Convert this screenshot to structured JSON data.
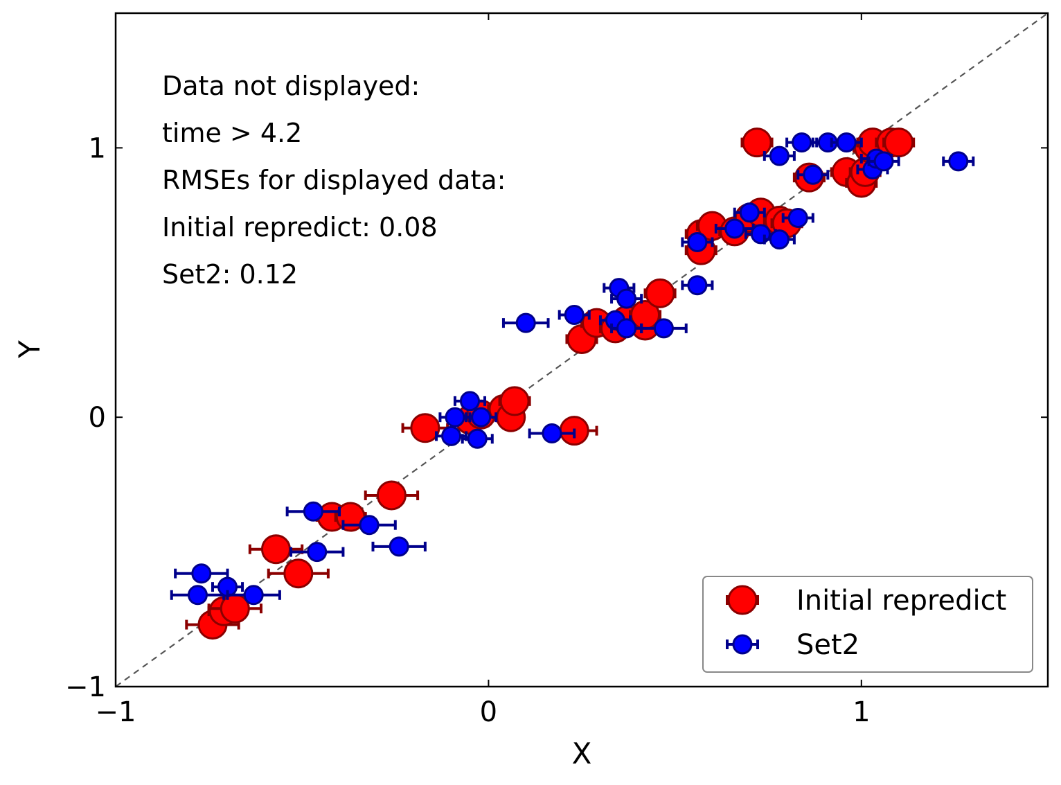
{
  "chart_data": {
    "type": "scatter",
    "xlabel": "X",
    "ylabel": "Y",
    "xlim": [
      -1.0,
      1.5
    ],
    "ylim": [
      -1.0,
      1.5
    ],
    "x_ticks": [
      -1,
      0,
      1
    ],
    "y_ticks": [
      -1,
      0,
      1
    ],
    "x_tick_labels": [
      "−1",
      "0",
      "1"
    ],
    "y_tick_labels": [
      "−1",
      "0",
      "1"
    ],
    "grid": false,
    "reference_line": {
      "style": "dashed",
      "color": "#555555",
      "from": [
        -1.0,
        -1.0
      ],
      "to": [
        1.5,
        1.5
      ]
    },
    "annotations": [
      "Data not displayed:",
      "time > 4.2",
      "RMSEs for displayed data:",
      "Initial repredict: 0.08",
      "Set2: 0.12"
    ],
    "legend": {
      "placement": "lower-right",
      "entries": [
        "Initial repredict",
        "Set2"
      ]
    },
    "series": [
      {
        "name": "Initial repredict",
        "color": "#ff0000",
        "edge_color": "#8b0000",
        "marker": "circle",
        "points": [
          {
            "x": -0.74,
            "y": -0.77,
            "xerr": 0.07
          },
          {
            "x": -0.71,
            "y": -0.72,
            "xerr": 0.04
          },
          {
            "x": -0.68,
            "y": -0.71,
            "xerr": 0.07
          },
          {
            "x": -0.57,
            "y": -0.49,
            "xerr": 0.07
          },
          {
            "x": -0.51,
            "y": -0.58,
            "xerr": 0.08
          },
          {
            "x": -0.42,
            "y": -0.37,
            "xerr": 0.04
          },
          {
            "x": -0.37,
            "y": -0.37,
            "xerr": 0.04
          },
          {
            "x": -0.26,
            "y": -0.29,
            "xerr": 0.07
          },
          {
            "x": -0.17,
            "y": -0.04,
            "xerr": 0.06
          },
          {
            "x": -0.05,
            "y": -0.01,
            "xerr": 0.03
          },
          {
            "x": -0.02,
            "y": 0.01,
            "xerr": 0.03
          },
          {
            "x": 0.04,
            "y": 0.03,
            "xerr": 0.04
          },
          {
            "x": 0.06,
            "y": 0.0,
            "xerr": 0.03
          },
          {
            "x": 0.07,
            "y": 0.06,
            "xerr": 0.04
          },
          {
            "x": 0.23,
            "y": -0.05,
            "xerr": 0.06
          },
          {
            "x": 0.25,
            "y": 0.29,
            "xerr": 0.04
          },
          {
            "x": 0.29,
            "y": 0.35,
            "xerr": 0.04
          },
          {
            "x": 0.34,
            "y": 0.33,
            "xerr": 0.04
          },
          {
            "x": 0.37,
            "y": 0.36,
            "xerr": 0.04
          },
          {
            "x": 0.42,
            "y": 0.34,
            "xerr": 0.04
          },
          {
            "x": 0.42,
            "y": 0.38,
            "xerr": 0.04
          },
          {
            "x": 0.46,
            "y": 0.46,
            "xerr": 0.04
          },
          {
            "x": 0.57,
            "y": 0.68,
            "xerr": 0.04
          },
          {
            "x": 0.57,
            "y": 0.62,
            "xerr": 0.04
          },
          {
            "x": 0.6,
            "y": 0.71,
            "xerr": 0.04
          },
          {
            "x": 0.66,
            "y": 0.69,
            "xerr": 0.04
          },
          {
            "x": 0.7,
            "y": 0.74,
            "xerr": 0.04
          },
          {
            "x": 0.72,
            "y": 1.02,
            "xerr": 0.04
          },
          {
            "x": 0.73,
            "y": 0.76,
            "xerr": 0.04
          },
          {
            "x": 0.78,
            "y": 0.73,
            "xerr": 0.04
          },
          {
            "x": 0.8,
            "y": 0.72,
            "xerr": 0.04
          },
          {
            "x": 0.86,
            "y": 0.89,
            "xerr": 0.04
          },
          {
            "x": 0.96,
            "y": 0.91,
            "xerr": 0.04
          },
          {
            "x": 1.0,
            "y": 0.87,
            "xerr": 0.04
          },
          {
            "x": 1.01,
            "y": 0.91,
            "xerr": 0.04
          },
          {
            "x": 1.02,
            "y": 1.0,
            "xerr": 0.04
          },
          {
            "x": 1.03,
            "y": 1.02,
            "xerr": 0.04
          },
          {
            "x": 1.08,
            "y": 1.02,
            "xerr": 0.04
          },
          {
            "x": 1.1,
            "y": 1.02,
            "xerr": 0.04
          }
        ]
      },
      {
        "name": "Set2",
        "color": "#0000ff",
        "edge_color": "#00008b",
        "marker": "circle",
        "points": [
          {
            "x": -0.77,
            "y": -0.58,
            "xerr": 0.07
          },
          {
            "x": -0.78,
            "y": -0.66,
            "xerr": 0.07
          },
          {
            "x": -0.7,
            "y": -0.63,
            "xerr": 0.04
          },
          {
            "x": -0.63,
            "y": -0.66,
            "xerr": 0.07
          },
          {
            "x": -0.47,
            "y": -0.35,
            "xerr": 0.07
          },
          {
            "x": -0.46,
            "y": -0.5,
            "xerr": 0.07
          },
          {
            "x": -0.32,
            "y": -0.4,
            "xerr": 0.07
          },
          {
            "x": -0.24,
            "y": -0.48,
            "xerr": 0.07
          },
          {
            "x": -0.1,
            "y": -0.07,
            "xerr": 0.04
          },
          {
            "x": -0.09,
            "y": 0.0,
            "xerr": 0.04
          },
          {
            "x": -0.05,
            "y": 0.06,
            "xerr": 0.04
          },
          {
            "x": -0.03,
            "y": -0.08,
            "xerr": 0.04
          },
          {
            "x": -0.02,
            "y": 0.0,
            "xerr": 0.04
          },
          {
            "x": 0.1,
            "y": 0.35,
            "xerr": 0.06
          },
          {
            "x": 0.17,
            "y": -0.06,
            "xerr": 0.06
          },
          {
            "x": 0.23,
            "y": 0.38,
            "xerr": 0.04
          },
          {
            "x": 0.34,
            "y": 0.36,
            "xerr": 0.04
          },
          {
            "x": 0.35,
            "y": 0.48,
            "xerr": 0.04
          },
          {
            "x": 0.37,
            "y": 0.44,
            "xerr": 0.04
          },
          {
            "x": 0.37,
            "y": 0.33,
            "xerr": 0.04
          },
          {
            "x": 0.47,
            "y": 0.33,
            "xerr": 0.06
          },
          {
            "x": 0.56,
            "y": 0.65,
            "xerr": 0.04
          },
          {
            "x": 0.56,
            "y": 0.49,
            "xerr": 0.04
          },
          {
            "x": 0.66,
            "y": 0.7,
            "xerr": 0.05
          },
          {
            "x": 0.7,
            "y": 0.76,
            "xerr": 0.04
          },
          {
            "x": 0.73,
            "y": 0.68,
            "xerr": 0.04
          },
          {
            "x": 0.78,
            "y": 0.66,
            "xerr": 0.04
          },
          {
            "x": 0.78,
            "y": 0.97,
            "xerr": 0.04
          },
          {
            "x": 0.83,
            "y": 0.74,
            "xerr": 0.04
          },
          {
            "x": 0.84,
            "y": 1.02,
            "xerr": 0.04
          },
          {
            "x": 0.87,
            "y": 0.9,
            "xerr": 0.04
          },
          {
            "x": 0.91,
            "y": 1.02,
            "xerr": 0.04
          },
          {
            "x": 0.96,
            "y": 1.02,
            "xerr": 0.04
          },
          {
            "x": 1.03,
            "y": 0.92,
            "xerr": 0.04
          },
          {
            "x": 1.04,
            "y": 0.96,
            "xerr": 0.04
          },
          {
            "x": 1.06,
            "y": 0.95,
            "xerr": 0.04
          },
          {
            "x": 1.26,
            "y": 0.95,
            "xerr": 0.04
          }
        ]
      }
    ]
  }
}
